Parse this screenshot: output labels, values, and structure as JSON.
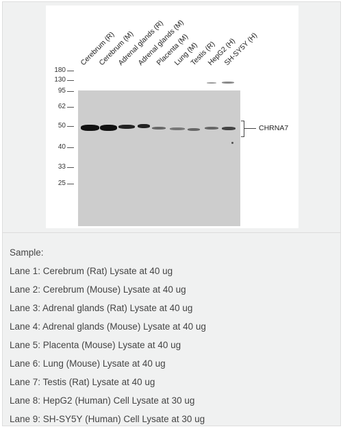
{
  "figure": {
    "lane_labels": [
      "Cerebrum (R)",
      "Cerebrum (M)",
      "Adrenal glands (R)",
      "Adrenal glands (M)",
      "Placenta (M)",
      "Lung (M)",
      "Testis (R)",
      "HepG2 (H)",
      "SH-SY5Y (H)"
    ],
    "mw_markers": [
      "180",
      "130",
      "95",
      "62",
      "50",
      "40",
      "33",
      "25"
    ],
    "target_label": "CHRNA7"
  },
  "legend": {
    "sample_label": "Sample:",
    "lanes": [
      "Lane 1: Cerebrum (Rat) Lysate at 40 ug",
      "Lane 2: Cerebrum (Mouse) Lysate at 40 ug",
      "Lane 3: Adrenal glands (Rat) Lysate at 40 ug",
      "Lane 4: Adrenal glands (Mouse) Lysate at 40 ug",
      "Lane 5: Placenta (Mouse) Lysate at 40 ug",
      "Lane 6: Lung (Mouse) Lysate at 40 ug",
      "Lane 7: Testis (Rat) Lysate at 40 ug",
      "Lane 8: HepG2 (Human) Cell Lysate at 30 ug",
      "Lane 9: SH-SY5Y (Human) Cell Lysate at 30 ug"
    ]
  }
}
